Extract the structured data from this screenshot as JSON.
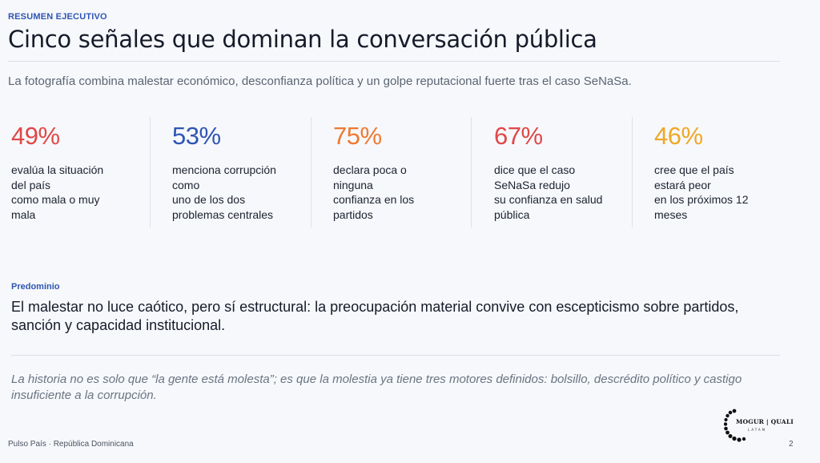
{
  "header": {
    "kicker": "RESUMEN EJECUTIVO",
    "title": "Cinco señales que dominan la conversación pública",
    "subtitle": "La fotografía combina malestar económico, desconfianza política y un golpe reputacional fuerte tras el caso SeNaSa."
  },
  "kpis": [
    {
      "value": "49%",
      "color": "#e04848",
      "lines": [
        "evalúa la situación",
        "del país",
        "como mala o muy",
        "mala"
      ]
    },
    {
      "value": "53%",
      "color": "#2f55b4",
      "lines": [
        "menciona corrupción",
        "como",
        "uno de los dos",
        "problemas centrales"
      ]
    },
    {
      "value": "75%",
      "color": "#ee7a33",
      "lines": [
        "declara poca o",
        "ninguna",
        "confianza en los",
        "partidos"
      ]
    },
    {
      "value": "67%",
      "color": "#e04848",
      "lines": [
        "dice que el caso",
        "SeNaSa redujo",
        "su confianza en salud",
        "pública"
      ]
    },
    {
      "value": "46%",
      "color": "#f0a727",
      "lines": [
        "cree que el país",
        "estará peor",
        "en los próximos 12",
        "meses"
      ]
    }
  ],
  "predominio": {
    "label": "Predominio",
    "statement": "El malestar no luce caótico, pero sí estructural: la preocupación material convive con escepticismo sobre partidos, sanción y capacidad institucional."
  },
  "quote": "La historia no es solo que “la gente está molesta”; es que la molestia ya tiene tres motores definidos: bolsillo, descrédito político y castigo insuficiente a la corrupción.",
  "footer": {
    "source": "Pulso País · República Dominicana",
    "page": "2"
  },
  "logo": {
    "name": "MOGUR | QUALI",
    "sub": "LATAM"
  }
}
